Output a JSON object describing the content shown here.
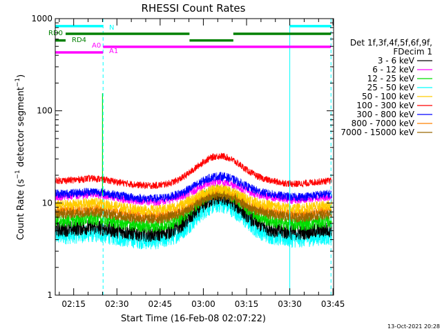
{
  "chart_data": {
    "type": "line",
    "title": "RHESSI Count Rates",
    "xlabel": "Start Time (16-Feb-08 02:07:22)",
    "ylabel_prefix": "Count Rate (s",
    "ylabel_sup1": "−1",
    "ylabel_mid": " detector segment",
    "ylabel_sup2": "−1",
    "ylabel_suffix": ")",
    "yscale": "log",
    "ylim": [
      1,
      1000
    ],
    "xlim_min": [
      8.6,
      105.2
    ],
    "x_ticks": [
      {
        "min": 15,
        "label": "02:15"
      },
      {
        "min": 30,
        "label": "02:30"
      },
      {
        "min": 45,
        "label": "02:45"
      },
      {
        "min": 60,
        "label": "03:00"
      },
      {
        "min": 75,
        "label": "03:15"
      },
      {
        "min": 90,
        "label": "03:30"
      },
      {
        "min": 105,
        "label": "03:45"
      }
    ],
    "y_ticks": [
      {
        "value": 1,
        "label": "1"
      },
      {
        "value": 10,
        "label": "10"
      },
      {
        "value": 100,
        "label": "100"
      },
      {
        "value": 1000,
        "label": "1000"
      }
    ],
    "legend_title": "Det 1f,3f,4f,5f,6f,9f,",
    "legend_subtitle": "FDecim 1",
    "series": [
      {
        "name": "3 - 6 keV",
        "color": "#000000",
        "base": 5.2,
        "peak": 2.2,
        "noise": 0.09
      },
      {
        "name": "6 - 12 keV",
        "color": "#ff00ff",
        "base": 11.8,
        "peak": 1.45,
        "noise": 0.05
      },
      {
        "name": "12 - 25 keV",
        "color": "#00dd00",
        "base": 6.4,
        "peak": 2.1,
        "noise": 0.08
      },
      {
        "name": "25 - 50 keV",
        "color": "#00ffff",
        "base": 4.4,
        "peak": 2.2,
        "noise": 0.1
      },
      {
        "name": "50 - 100 keV",
        "color": "#ffcc00",
        "base": 9.5,
        "peak": 1.5,
        "noise": 0.06
      },
      {
        "name": "100 - 300 keV",
        "color": "#ff0000",
        "base": 17.5,
        "peak": 1.85,
        "noise": 0.04
      },
      {
        "name": "300 - 800 keV",
        "color": "#0000ff",
        "base": 12.6,
        "peak": 1.55,
        "noise": 0.05
      },
      {
        "name": "800 - 7000 keV",
        "color": "#ff8000",
        "base": 8.2,
        "peak": 1.6,
        "noise": 0.06
      },
      {
        "name": "7000 - 15000 keV",
        "color": "#996600",
        "base": 7.6,
        "peak": 1.6,
        "noise": 0.06
      }
    ],
    "spike": {
      "min": 25.0,
      "value": 155,
      "color": "#00dd00"
    },
    "vlines": [
      {
        "min": 8.6,
        "style": "solid",
        "color": "#00ffff"
      },
      {
        "min": 25.2,
        "style": "dashed",
        "color": "#00ffff"
      },
      {
        "min": 90.0,
        "style": "solid",
        "color": "#00ffff"
      },
      {
        "min": 104.3,
        "style": "dashed",
        "color": "#00ffff"
      }
    ],
    "flag_bars": [
      {
        "label": "N",
        "color": "#00ffff",
        "segments": [
          [
            8.6,
            25.2
          ],
          [
            90.0,
            104.3
          ]
        ],
        "level": 830
      },
      {
        "label": "RD0",
        "color": "#008000",
        "segments": [
          [
            12.2,
            55.2
          ],
          [
            70.4,
            104.3
          ]
        ],
        "level": 685
      },
      {
        "label": "RD4",
        "color": "#008000",
        "segments": [
          [
            8.6,
            12.2
          ],
          [
            55.2,
            70.4
          ]
        ],
        "level": 580
      },
      {
        "label": "A0",
        "color": "#ff00ff",
        "segments": [
          [
            25.2,
            104.3
          ]
        ],
        "level": 495
      },
      {
        "label": "A1",
        "color": "#ff00ff",
        "segments": [
          [
            8.6,
            25.2
          ]
        ],
        "level": 430
      }
    ],
    "footer_date": "13-Oct-2021 20:28"
  }
}
